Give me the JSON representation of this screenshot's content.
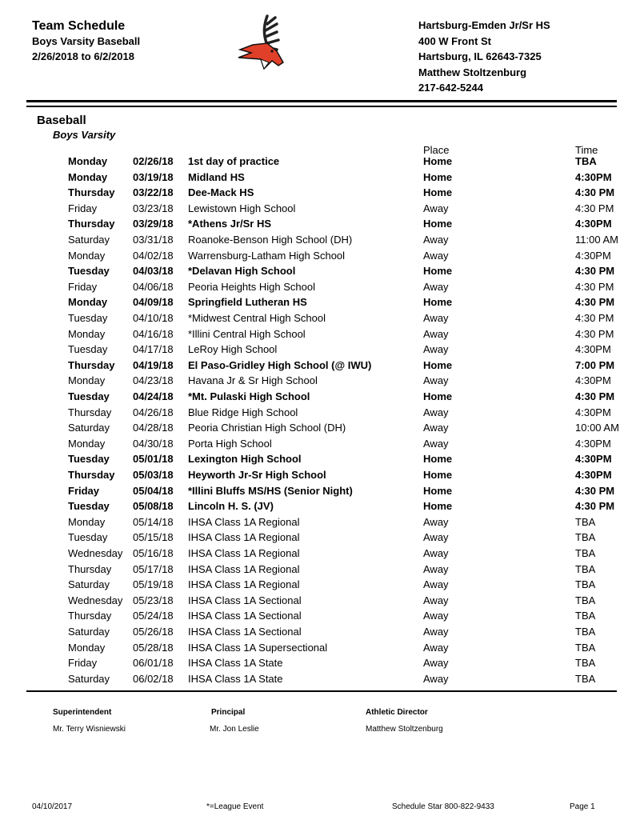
{
  "header": {
    "title": "Team Schedule",
    "subtitle": "Boys Varsity Baseball",
    "date_range": "2/26/2018 to 6/2/2018",
    "school": "Hartsburg-Emden Jr/Sr HS",
    "address1": "400 W Front St",
    "address2": "Hartsburg, IL 62643-7325",
    "contact": "Matthew Stoltzenburg",
    "phone": "217-642-5244",
    "logo_icon": "deer-mascot-logo"
  },
  "section": {
    "sport": "Baseball",
    "level": "Boys Varsity",
    "place_header": "Place",
    "time_header": "Time"
  },
  "games": [
    [
      "Monday",
      "02/26/18",
      "1st day of practice",
      "Home",
      "TBA"
    ],
    [
      "Monday",
      "03/19/18",
      "Midland HS",
      "Home",
      "4:30PM"
    ],
    [
      "Thursday",
      "03/22/18",
      "Dee-Mack HS",
      "Home",
      "4:30 PM"
    ],
    [
      "Friday",
      "03/23/18",
      "Lewistown High School",
      "Away",
      "4:30 PM"
    ],
    [
      "Thursday",
      "03/29/18",
      "*Athens Jr/Sr HS",
      "Home",
      "4:30PM"
    ],
    [
      "Saturday",
      "03/31/18",
      "Roanoke-Benson High School (DH)",
      "Away",
      "11:00 AM"
    ],
    [
      "Monday",
      "04/02/18",
      "Warrensburg-Latham High School",
      "Away",
      "4:30PM"
    ],
    [
      "Tuesday",
      "04/03/18",
      "*Delavan High School",
      "Home",
      "4:30 PM"
    ],
    [
      "Friday",
      "04/06/18",
      "Peoria Heights High School",
      "Away",
      "4:30 PM"
    ],
    [
      "Monday",
      "04/09/18",
      "Springfield Lutheran HS",
      "Home",
      "4:30 PM"
    ],
    [
      "Tuesday",
      "04/10/18",
      "*Midwest Central High School",
      "Away",
      "4:30 PM"
    ],
    [
      "Monday",
      "04/16/18",
      "*Illini Central High School",
      "Away",
      "4:30 PM"
    ],
    [
      "Tuesday",
      "04/17/18",
      "LeRoy High School",
      "Away",
      "4:30PM"
    ],
    [
      "Thursday",
      "04/19/18",
      "El Paso-Gridley High School (@ IWU)",
      "Home",
      "7:00 PM"
    ],
    [
      "Monday",
      "04/23/18",
      "Havana Jr & Sr High School",
      "Away",
      "4:30PM"
    ],
    [
      "Tuesday",
      "04/24/18",
      "*Mt. Pulaski High School",
      "Home",
      "4:30 PM"
    ],
    [
      "Thursday",
      "04/26/18",
      "Blue Ridge High School",
      "Away",
      "4:30PM"
    ],
    [
      "Saturday",
      "04/28/18",
      "Peoria Christian High School (DH)",
      "Away",
      "10:00 AM"
    ],
    [
      "Monday",
      "04/30/18",
      "Porta High School",
      "Away",
      "4:30PM"
    ],
    [
      "Tuesday",
      "05/01/18",
      "Lexington High School",
      "Home",
      "4:30PM"
    ],
    [
      "Thursday",
      "05/03/18",
      "Heyworth Jr-Sr High School",
      "Home",
      "4:30PM"
    ],
    [
      "Friday",
      "05/04/18",
      "*Illini Bluffs MS/HS (Senior Night)",
      "Home",
      "4:30 PM"
    ],
    [
      "Tuesday",
      "05/08/18",
      "Lincoln H. S. (JV)",
      "Home",
      "4:30 PM"
    ],
    [
      "Monday",
      "05/14/18",
      "IHSA Class 1A Regional",
      "Away",
      "TBA"
    ],
    [
      "Tuesday",
      "05/15/18",
      "IHSA Class 1A Regional",
      "Away",
      "TBA"
    ],
    [
      "Wednesday",
      "05/16/18",
      "IHSA Class 1A Regional",
      "Away",
      "TBA"
    ],
    [
      "Thursday",
      "05/17/18",
      "IHSA Class 1A Regional",
      "Away",
      "TBA"
    ],
    [
      "Saturday",
      "05/19/18",
      "IHSA Class 1A Regional",
      "Away",
      "TBA"
    ],
    [
      "Wednesday",
      "05/23/18",
      "IHSA Class 1A Sectional",
      "Away",
      "TBA"
    ],
    [
      "Thursday",
      "05/24/18",
      "IHSA Class 1A Sectional",
      "Away",
      "TBA"
    ],
    [
      "Saturday",
      "05/26/18",
      "IHSA Class 1A Sectional",
      "Away",
      "TBA"
    ],
    [
      "Monday",
      "05/28/18",
      "IHSA Class 1A Supersectional",
      "Away",
      "TBA"
    ],
    [
      "Friday",
      "06/01/18",
      "IHSA Class 1A State",
      "Away",
      "TBA"
    ],
    [
      "Saturday",
      "06/02/18",
      "IHSA Class 1A State",
      "Away",
      "TBA"
    ]
  ],
  "signatures": [
    {
      "role": "Superintendent",
      "name": "Mr. Terry Wisniewski"
    },
    {
      "role": "Principal",
      "name": "Mr. Jon Leslie"
    },
    {
      "role": "Athletic Director",
      "name": "Matthew Stoltzenburg"
    }
  ],
  "footer": {
    "printed_date": "04/10/2017",
    "legend": "*=League Event",
    "vendor": "Schedule Star 800-822-9433",
    "page": "Page 1"
  }
}
